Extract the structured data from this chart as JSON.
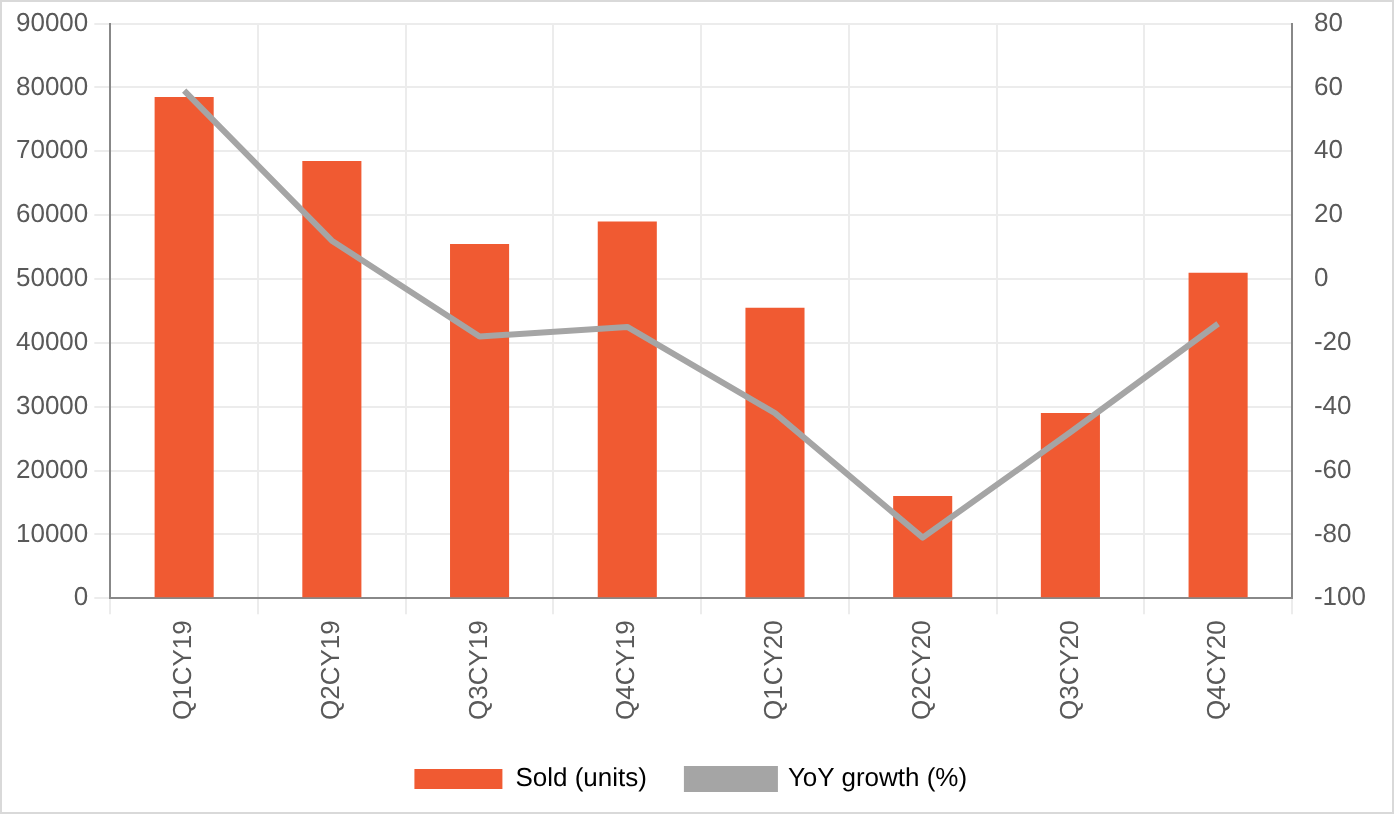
{
  "chart_data": {
    "type": "bar",
    "categories": [
      "Q1CY19",
      "Q2CY19",
      "Q3CY19",
      "Q4CY19",
      "Q1CY20",
      "Q2CY20",
      "Q3CY20",
      "Q4CY20"
    ],
    "series": [
      {
        "name": "Sold (units)",
        "color": "#f05a32",
        "values": [
          78500,
          68500,
          55500,
          59000,
          45500,
          16000,
          29000,
          51000
        ]
      },
      {
        "name": "YoY growth (%)",
        "type": "line",
        "axis": "y2",
        "color": "#a5a5a5",
        "values": [
          59,
          12,
          -18,
          -15,
          -42,
          -81,
          -48,
          -14
        ]
      }
    ],
    "ylim": [
      0,
      90000
    ],
    "yticks": [
      0,
      10000,
      20000,
      30000,
      40000,
      50000,
      60000,
      70000,
      80000,
      90000
    ],
    "y2lim": [
      -100,
      80
    ],
    "y2ticks": [
      -100,
      -80,
      -60,
      -40,
      -20,
      0,
      20,
      40,
      60,
      80
    ],
    "grid": true,
    "legend": "bottom",
    "marker": "none",
    "line_style": "solid"
  }
}
